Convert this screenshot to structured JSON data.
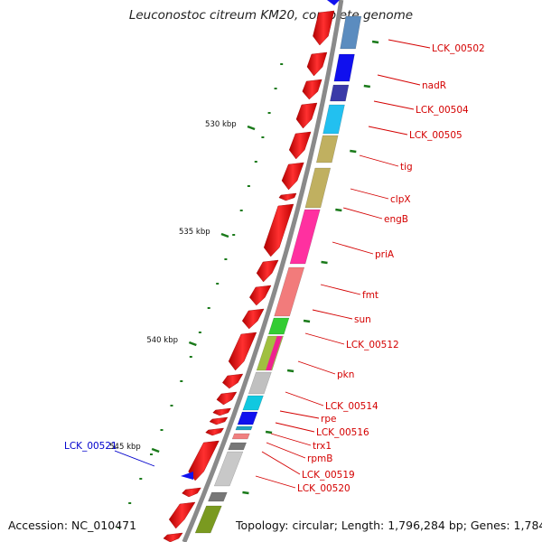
{
  "title": "Leuconostoc citreum KM20, complete genome",
  "footer": {
    "accession": "Accession: NC_010471",
    "topology": "Topology: circular; Length: 1,796,284 bp; Genes: 1,784"
  },
  "kbp_labels": [
    "530 kbp",
    "535 kbp",
    "540 kbp",
    "545 kbp"
  ],
  "gene_labels": [
    {
      "text": "LCK_00502",
      "color": "#d40000"
    },
    {
      "text": "nadR",
      "color": "#d40000"
    },
    {
      "text": "LCK_00504",
      "color": "#d40000"
    },
    {
      "text": "LCK_00505",
      "color": "#d40000"
    },
    {
      "text": "tig",
      "color": "#d40000"
    },
    {
      "text": "clpX",
      "color": "#d40000"
    },
    {
      "text": "engB",
      "color": "#d40000"
    },
    {
      "text": "priA",
      "color": "#d40000"
    },
    {
      "text": "fmt",
      "color": "#d40000"
    },
    {
      "text": "sun",
      "color": "#d40000"
    },
    {
      "text": "LCK_00512",
      "color": "#d40000"
    },
    {
      "text": "pkn",
      "color": "#d40000"
    },
    {
      "text": "LCK_00514",
      "color": "#d40000"
    },
    {
      "text": "rpe",
      "color": "#d40000"
    },
    {
      "text": "LCK_00516",
      "color": "#d40000"
    },
    {
      "text": "trx1",
      "color": "#d40000"
    },
    {
      "text": "rpmB",
      "color": "#d40000"
    },
    {
      "text": "LCK_00519",
      "color": "#d40000"
    },
    {
      "text": "LCK_00520",
      "color": "#d40000"
    },
    {
      "text": "LCK_00521",
      "color": "#0000cc"
    }
  ],
  "colors": {
    "cds": "#ee1111",
    "backbone": "#8a8a8a",
    "tick": "#1a7a1a",
    "reverse_marker": "#1111ee"
  }
}
